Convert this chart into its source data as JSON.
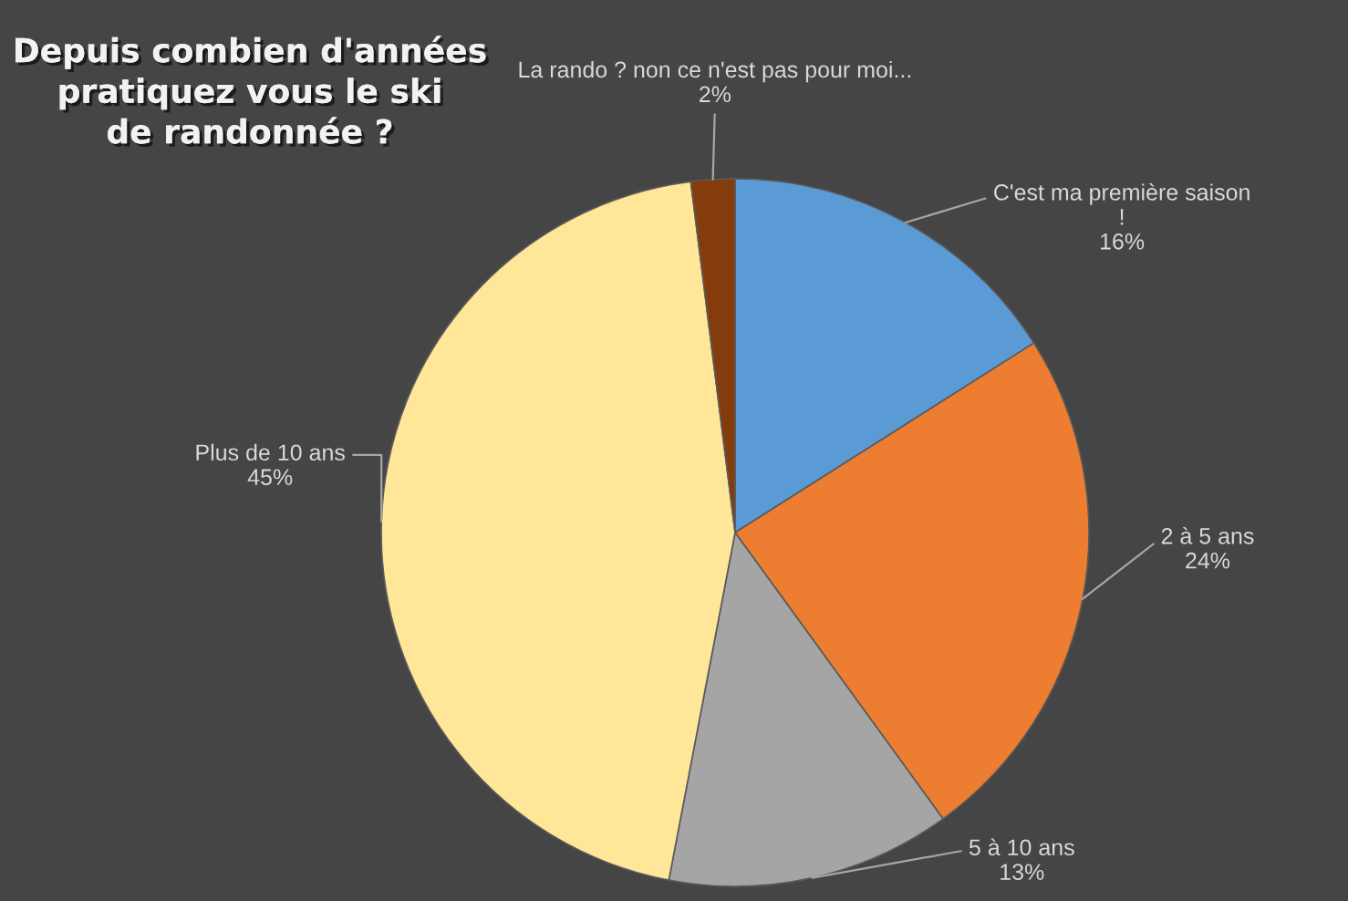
{
  "chart_data": {
    "type": "pie",
    "title": "Depuis combien d'années pratiquez vous le ski de randonnée ?",
    "categories": [
      "C'est ma première saison !",
      "2 à 5 ans",
      "5 à 10 ans",
      "Plus de 10 ans",
      "La rando ? non ce n'est pas pour moi..."
    ],
    "values": [
      16,
      24,
      13,
      45,
      2
    ],
    "value_labels": [
      "16%",
      "24%",
      "13%",
      "45%",
      "2%"
    ],
    "colors": [
      "#5b9bd5",
      "#ed7d31",
      "#a5a5a5",
      "#ffe699",
      "#843c0c"
    ]
  }
}
